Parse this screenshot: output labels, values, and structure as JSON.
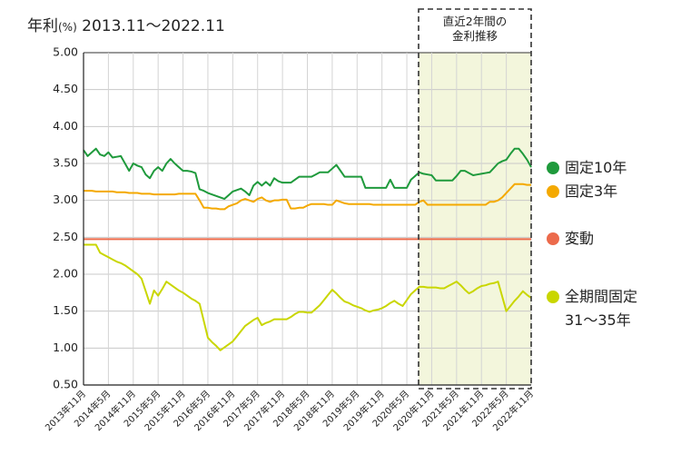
{
  "chart_data": {
    "type": "line",
    "y_label": "年利",
    "y_unit": "(%)",
    "title": "2013.11〜2022.11",
    "annotation": "直近2年間の\n金利推移",
    "categories": [
      "2013年11月",
      null,
      null,
      null,
      null,
      null,
      "2014年5月",
      null,
      null,
      null,
      null,
      null,
      "2014年11月",
      null,
      null,
      null,
      null,
      null,
      "2015年5月",
      null,
      null,
      null,
      null,
      null,
      "2015年11月",
      null,
      null,
      null,
      null,
      null,
      "2016年5月",
      null,
      null,
      null,
      null,
      null,
      "2016年11月",
      null,
      null,
      null,
      null,
      null,
      "2017年5月",
      null,
      null,
      null,
      null,
      null,
      "2017年11月",
      null,
      null,
      null,
      null,
      null,
      "2018年5月",
      null,
      null,
      null,
      null,
      null,
      "2018年11月",
      null,
      null,
      null,
      null,
      null,
      "2019年5月",
      null,
      null,
      null,
      null,
      null,
      "2019年11月",
      null,
      null,
      null,
      null,
      null,
      "2020年5月",
      null,
      null,
      null,
      null,
      null,
      "2020年11月",
      null,
      null,
      null,
      null,
      null,
      "2021年5月",
      null,
      null,
      null,
      null,
      null,
      "2021年11月",
      null,
      null,
      null,
      null,
      null,
      "2022年5月",
      null,
      null,
      null,
      null,
      null,
      "2022年11月"
    ],
    "series": [
      {
        "name": "固定10年",
        "color": "#1f9a3c",
        "values": [
          3.68,
          3.6,
          3.65,
          3.7,
          3.62,
          3.6,
          3.65,
          3.58,
          3.59,
          3.6,
          3.5,
          3.4,
          3.5,
          3.47,
          3.45,
          3.35,
          3.3,
          3.4,
          3.45,
          3.4,
          3.5,
          3.56,
          3.5,
          3.45,
          3.4,
          3.4,
          3.39,
          3.37,
          3.15,
          3.13,
          3.1,
          3.08,
          3.06,
          3.04,
          3.02,
          3.07,
          3.12,
          3.14,
          3.16,
          3.12,
          3.07,
          3.2,
          3.25,
          3.2,
          3.25,
          3.2,
          3.3,
          3.26,
          3.24,
          3.24,
          3.24,
          3.28,
          3.32,
          3.32,
          3.32,
          3.32,
          3.35,
          3.38,
          3.38,
          3.38,
          3.43,
          3.48,
          3.4,
          3.32,
          3.32,
          3.32,
          3.32,
          3.32,
          3.17,
          3.17,
          3.17,
          3.17,
          3.17,
          3.17,
          3.28,
          3.17,
          3.17,
          3.17,
          3.17,
          3.28,
          3.33,
          3.38,
          3.36,
          3.35,
          3.34,
          3.27,
          3.27,
          3.27,
          3.27,
          3.27,
          3.33,
          3.4,
          3.4,
          3.37,
          3.34,
          3.35,
          3.36,
          3.37,
          3.38,
          3.44,
          3.5,
          3.53,
          3.55,
          3.63,
          3.7,
          3.7,
          3.63,
          3.55,
          3.45
        ]
      },
      {
        "name": "固定3年",
        "color": "#f4a900",
        "values": [
          3.13,
          3.13,
          3.13,
          3.12,
          3.12,
          3.12,
          3.12,
          3.12,
          3.11,
          3.11,
          3.11,
          3.1,
          3.1,
          3.1,
          3.09,
          3.09,
          3.09,
          3.08,
          3.08,
          3.08,
          3.08,
          3.08,
          3.08,
          3.09,
          3.09,
          3.09,
          3.09,
          3.09,
          3.0,
          2.9,
          2.9,
          2.89,
          2.89,
          2.88,
          2.88,
          2.92,
          2.94,
          2.96,
          3.0,
          3.02,
          3.0,
          2.98,
          3.02,
          3.04,
          3.0,
          2.98,
          3.0,
          3.0,
          3.01,
          3.01,
          2.89,
          2.89,
          2.9,
          2.9,
          2.93,
          2.95,
          2.95,
          2.95,
          2.95,
          2.94,
          2.94,
          3.0,
          2.98,
          2.96,
          2.95,
          2.95,
          2.95,
          2.95,
          2.95,
          2.95,
          2.94,
          2.94,
          2.94,
          2.94,
          2.94,
          2.94,
          2.94,
          2.94,
          2.94,
          2.94,
          2.94,
          2.98,
          3.0,
          2.94,
          2.94,
          2.94,
          2.94,
          2.94,
          2.94,
          2.94,
          2.94,
          2.94,
          2.94,
          2.94,
          2.94,
          2.94,
          2.94,
          2.94,
          2.98,
          2.98,
          3.0,
          3.04,
          3.1,
          3.16,
          3.22,
          3.22,
          3.22,
          3.21,
          3.21
        ]
      },
      {
        "name": "変動",
        "color": "#ec6a4b",
        "values": [
          2.475,
          2.475,
          2.475,
          2.475,
          2.475,
          2.475,
          2.475,
          2.475,
          2.475,
          2.475,
          2.475,
          2.475,
          2.475,
          2.475,
          2.475,
          2.475,
          2.475,
          2.475,
          2.475,
          2.475,
          2.475,
          2.475,
          2.475,
          2.475,
          2.475,
          2.475,
          2.475,
          2.475,
          2.475,
          2.475,
          2.475,
          2.475,
          2.475,
          2.475,
          2.475,
          2.475,
          2.475,
          2.475,
          2.475,
          2.475,
          2.475,
          2.475,
          2.475,
          2.475,
          2.475,
          2.475,
          2.475,
          2.475,
          2.475,
          2.475,
          2.475,
          2.475,
          2.475,
          2.475,
          2.475,
          2.475,
          2.475,
          2.475,
          2.475,
          2.475,
          2.475,
          2.475,
          2.475,
          2.475,
          2.475,
          2.475,
          2.475,
          2.475,
          2.475,
          2.475,
          2.475,
          2.475,
          2.475,
          2.475,
          2.475,
          2.475,
          2.475,
          2.475,
          2.475,
          2.475,
          2.475,
          2.475,
          2.475,
          2.475,
          2.475,
          2.475,
          2.475,
          2.475,
          2.475,
          2.475,
          2.475,
          2.475,
          2.475,
          2.475,
          2.475,
          2.475,
          2.475,
          2.475,
          2.475,
          2.475,
          2.475,
          2.475,
          2.475,
          2.475,
          2.475,
          2.475,
          2.475,
          2.475,
          2.475
        ]
      },
      {
        "name": "全期間固定\n31〜35年",
        "color": "#c9d600",
        "values": [
          2.4,
          2.4,
          2.4,
          2.4,
          2.29,
          2.26,
          2.23,
          2.2,
          2.17,
          2.15,
          2.12,
          2.08,
          2.04,
          2.0,
          1.94,
          1.77,
          1.6,
          1.78,
          1.71,
          1.8,
          1.9,
          1.86,
          1.82,
          1.78,
          1.75,
          1.71,
          1.67,
          1.64,
          1.6,
          1.37,
          1.14,
          1.08,
          1.03,
          0.97,
          1.01,
          1.05,
          1.09,
          1.16,
          1.23,
          1.3,
          1.34,
          1.38,
          1.41,
          1.31,
          1.34,
          1.36,
          1.39,
          1.39,
          1.39,
          1.39,
          1.42,
          1.46,
          1.49,
          1.49,
          1.48,
          1.48,
          1.53,
          1.58,
          1.65,
          1.72,
          1.79,
          1.74,
          1.68,
          1.63,
          1.61,
          1.58,
          1.56,
          1.54,
          1.51,
          1.49,
          1.51,
          1.52,
          1.54,
          1.57,
          1.61,
          1.64,
          1.6,
          1.57,
          1.65,
          1.73,
          1.78,
          1.83,
          1.83,
          1.82,
          1.82,
          1.82,
          1.81,
          1.81,
          1.84,
          1.87,
          1.9,
          1.85,
          1.79,
          1.74,
          1.77,
          1.81,
          1.84,
          1.85,
          1.87,
          1.88,
          1.9,
          1.7,
          1.5,
          1.57,
          1.64,
          1.7,
          1.77,
          1.72,
          1.68
        ]
      }
    ],
    "ylim": [
      0.5,
      5.0
    ],
    "yticks": [
      {
        "value": 0.5,
        "label": "0.50"
      },
      {
        "value": 1.0,
        "label": "1.00"
      },
      {
        "value": 1.5,
        "label": "1.50"
      },
      {
        "value": 2.0,
        "label": "2.00"
      },
      {
        "value": 2.5,
        "label": "2.50"
      },
      {
        "value": 3.0,
        "label": "3.00"
      },
      {
        "value": 3.5,
        "label": "3.50"
      },
      {
        "value": 4.0,
        "label": "4.00"
      },
      {
        "value": 4.5,
        "label": "4.50"
      },
      {
        "value": 5.0,
        "label": "5.00"
      }
    ],
    "grid": true
  }
}
